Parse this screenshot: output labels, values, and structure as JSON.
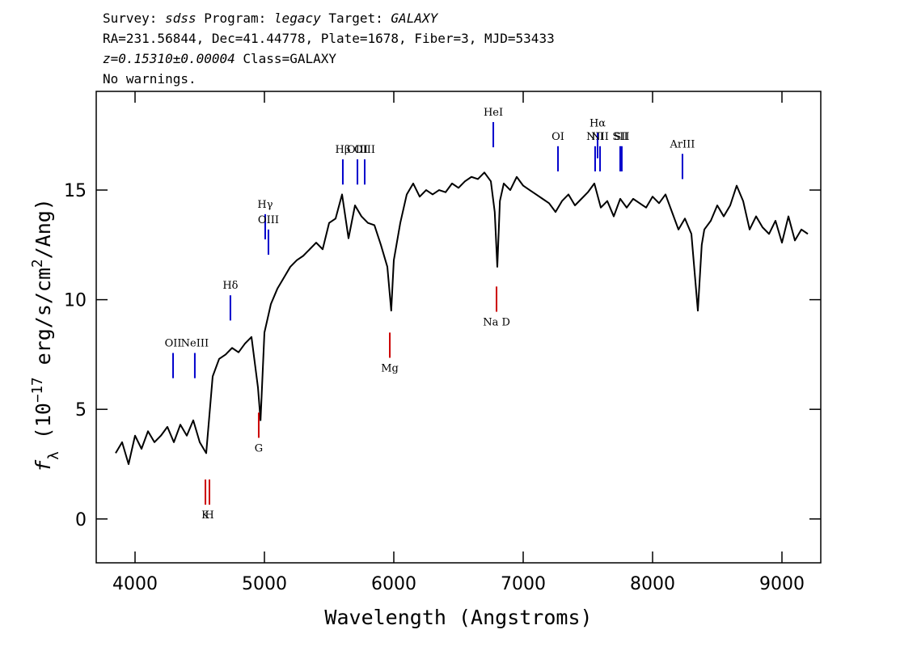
{
  "chart_data": {
    "type": "line",
    "header": [
      [
        {
          "text": "Survey: "
        },
        {
          "text": "sdss",
          "italic": true
        },
        {
          "text": " Program: "
        },
        {
          "text": "legacy",
          "italic": true
        },
        {
          "text": " Target: "
        },
        {
          "text": "GALAXY",
          "italic": true
        }
      ],
      [
        {
          "text": "RA=231.56844, Dec=41.44778, Plate=1678, Fiber=3, MJD=53433"
        }
      ],
      [
        {
          "text": "z=0.15310±0.00004",
          "italic": true
        },
        {
          "text": " Class=GALAXY"
        }
      ],
      [
        {
          "text": "No warnings."
        }
      ]
    ],
    "x_label": "Wavelength (Angstroms)",
    "y_label": [
      {
        "text": "f",
        "italic": true
      },
      {
        "text": "λ",
        "sub": true
      },
      {
        "text": " (10"
      },
      {
        "text": "−17",
        "sup": true
      },
      {
        "text": " erg/s/cm"
      },
      {
        "text": "2",
        "sup": true
      },
      {
        "text": "/Ang)"
      }
    ],
    "xlim": [
      3700,
      9300
    ],
    "ylim": [
      -2,
      19.5
    ],
    "xticks": [
      4000,
      5000,
      6000,
      7000,
      8000,
      9000
    ],
    "yticks": [
      0,
      5,
      10,
      15
    ],
    "x": [
      3850,
      3900,
      3950,
      4000,
      4050,
      4100,
      4150,
      4200,
      4250,
      4300,
      4350,
      4400,
      4450,
      4500,
      4550,
      4600,
      4650,
      4700,
      4750,
      4800,
      4850,
      4900,
      4950,
      4970,
      5000,
      5050,
      5100,
      5150,
      5200,
      5250,
      5300,
      5350,
      5400,
      5450,
      5500,
      5550,
      5600,
      5650,
      5700,
      5750,
      5800,
      5850,
      5900,
      5950,
      5980,
      6000,
      6050,
      6100,
      6150,
      6200,
      6250,
      6300,
      6350,
      6400,
      6450,
      6500,
      6550,
      6600,
      6650,
      6700,
      6750,
      6780,
      6800,
      6820,
      6850,
      6900,
      6950,
      7000,
      7050,
      7100,
      7150,
      7200,
      7250,
      7300,
      7350,
      7400,
      7450,
      7500,
      7550,
      7600,
      7650,
      7700,
      7750,
      7800,
      7850,
      7900,
      7950,
      8000,
      8050,
      8100,
      8150,
      8200,
      8250,
      8300,
      8350,
      8380,
      8400,
      8450,
      8500,
      8550,
      8600,
      8650,
      8700,
      8750,
      8800,
      8850,
      8900,
      8950,
      9000,
      9050,
      9100,
      9150,
      9200
    ],
    "series": [
      {
        "color": "#000000",
        "values": [
          3,
          3.5,
          2.5,
          3.8,
          3.2,
          4,
          3.5,
          3.8,
          4.2,
          3.5,
          4.3,
          3.8,
          4.5,
          3.5,
          3.0,
          6.5,
          7.3,
          7.5,
          7.8,
          7.6,
          8.0,
          8.3,
          6.0,
          4.5,
          8.5,
          9.8,
          10.5,
          11.0,
          11.5,
          11.8,
          12.0,
          12.3,
          12.6,
          12.3,
          13.5,
          13.7,
          14.8,
          12.8,
          14.3,
          13.8,
          13.5,
          13.4,
          12.5,
          11.5,
          9.5,
          11.8,
          13.5,
          14.8,
          15.3,
          14.7,
          15.0,
          14.8,
          15.0,
          14.9,
          15.3,
          15.1,
          15.4,
          15.6,
          15.5,
          15.8,
          15.4,
          14.0,
          11.5,
          14.5,
          15.3,
          15.0,
          15.6,
          15.2,
          15.0,
          14.8,
          14.6,
          14.4,
          14.0,
          14.5,
          14.8,
          14.3,
          14.6,
          14.9,
          15.3,
          14.2,
          14.5,
          13.8,
          14.6,
          14.2,
          14.6,
          14.4,
          14.2,
          14.7,
          14.4,
          14.8,
          14.0,
          13.2,
          13.7,
          13.0,
          9.5,
          12.5,
          13.2,
          13.6,
          14.3,
          13.8,
          14.3,
          15.2,
          14.5,
          13.2,
          13.8,
          13.3,
          13.0,
          13.6,
          12.6,
          13.8,
          12.7,
          13.2,
          13.0
        ]
      }
    ],
    "annotations": [
      {
        "label": "OII",
        "x": 4294,
        "y": 7.57,
        "kind": "emission",
        "color": "#0000cc"
      },
      {
        "label": "NeIII",
        "x": 4462,
        "y": 7.57,
        "kind": "emission",
        "color": "#0000cc"
      },
      {
        "label": "K",
        "x": 4544,
        "y": 1.8,
        "kind": "absorption",
        "color": "#cc0000"
      },
      {
        "label": "H",
        "x": 4575,
        "y": 1.8,
        "kind": "absorption",
        "color": "#cc0000"
      },
      {
        "label": "Hδ",
        "x": 4737,
        "y": 10.2,
        "kind": "emission",
        "color": "#0000cc"
      },
      {
        "label": "G",
        "x": 4956,
        "y": 4.85,
        "kind": "absorption",
        "color": "#cc0000"
      },
      {
        "label": "Hγ",
        "x": 5006,
        "y": 13.9,
        "kind": "emission",
        "color": "#0000cc"
      },
      {
        "label": "OIII",
        "x": 5031,
        "y": 13.2,
        "kind": "emission",
        "color": "#0000cc"
      },
      {
        "label": "Hβ",
        "x": 5606,
        "y": 16.4,
        "kind": "emission",
        "color": "#0000cc"
      },
      {
        "label": "OIII",
        "x": 5719,
        "y": 16.4,
        "kind": "emission",
        "color": "#0000cc"
      },
      {
        "label": "OIII",
        "x": 5775,
        "y": 16.4,
        "kind": "emission",
        "color": "#0000cc"
      },
      {
        "label": "Mg",
        "x": 5969,
        "y": 8.5,
        "kind": "absorption",
        "color": "#cc0000"
      },
      {
        "label": "HeI",
        "x": 6769,
        "y": 18.1,
        "kind": "emission",
        "color": "#0000cc"
      },
      {
        "label": "Na D",
        "x": 6794,
        "y": 10.6,
        "kind": "absorption",
        "color": "#cc0000"
      },
      {
        "label": "OI",
        "x": 7269,
        "y": 17.0,
        "kind": "emission",
        "color": "#0000cc"
      },
      {
        "label": "NII",
        "x": 7556,
        "y": 17.0,
        "kind": "emission",
        "color": "#0000cc"
      },
      {
        "label": "Hα",
        "x": 7575,
        "y": 17.6,
        "kind": "emission",
        "color": "#0000cc"
      },
      {
        "label": "NII",
        "x": 7594,
        "y": 17.0,
        "kind": "emission",
        "color": "#0000cc"
      },
      {
        "label": "SII",
        "x": 7750,
        "y": 17.0,
        "kind": "emission",
        "color": "#0000cc"
      },
      {
        "label": "SII",
        "x": 7762,
        "y": 17.0,
        "kind": "emission",
        "color": "#0000cc"
      },
      {
        "label": "ArIII",
        "x": 8231,
        "y": 16.65,
        "kind": "emission",
        "color": "#0000cc"
      }
    ]
  }
}
